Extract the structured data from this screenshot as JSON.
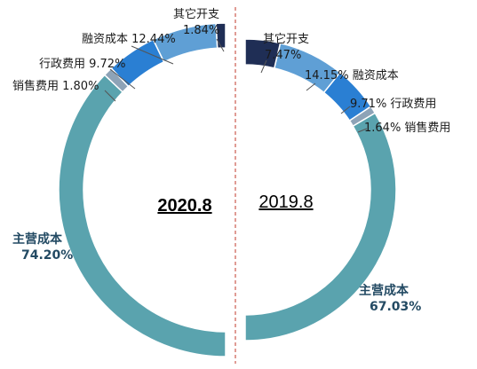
{
  "chart_data": [
    {
      "type": "pie",
      "title": "2020.8",
      "slices": [
        {
          "name": "主营成本",
          "value": 74.2,
          "label": "74.20%",
          "color": "#5aa3ae"
        },
        {
          "name": "销售费用",
          "value": 1.8,
          "label": "1.80%",
          "color": "#8ea3b7"
        },
        {
          "name": "行政费用",
          "value": 9.72,
          "label": "9.72%",
          "color": "#2a7fd3"
        },
        {
          "name": "融资成本",
          "value": 12.44,
          "label": "12.44%",
          "color": "#5f9fd5"
        },
        {
          "name": "其它开支",
          "value": 1.84,
          "label": "1.84%",
          "color": "#1f2e55"
        }
      ]
    },
    {
      "type": "pie",
      "title": "2019.8",
      "slices": [
        {
          "name": "主营成本",
          "value": 67.03,
          "label": "67.03%",
          "color": "#5aa3ae"
        },
        {
          "name": "销售费用",
          "value": 1.64,
          "label": "1.64%",
          "color": "#8ea3b7"
        },
        {
          "name": "行政费用",
          "value": 9.71,
          "label": "9.71%",
          "color": "#2a7fd3"
        },
        {
          "name": "融资成本",
          "value": 14.15,
          "label": "14.15%",
          "color": "#5f9fd5"
        },
        {
          "name": "其它开支",
          "value": 7.47,
          "label": "7.47%",
          "color": "#1f2e55"
        }
      ]
    }
  ],
  "labels": {
    "left": {
      "other": "其它开支",
      "other_pct": "1.84%",
      "finance": "融资成本 12.44%",
      "admin": "行政费用 9.72%",
      "sales": "销售费用 1.80%",
      "main": "主营成本",
      "main_pct": "74.20%"
    },
    "right": {
      "other": "其它开支",
      "other_pct": "7.47%",
      "finance": "14.15% 融资成本",
      "admin": "9.71% 行政费用",
      "sales": "1.64% 销售费用",
      "main": "主营成本",
      "main_pct": "67.03%"
    }
  }
}
